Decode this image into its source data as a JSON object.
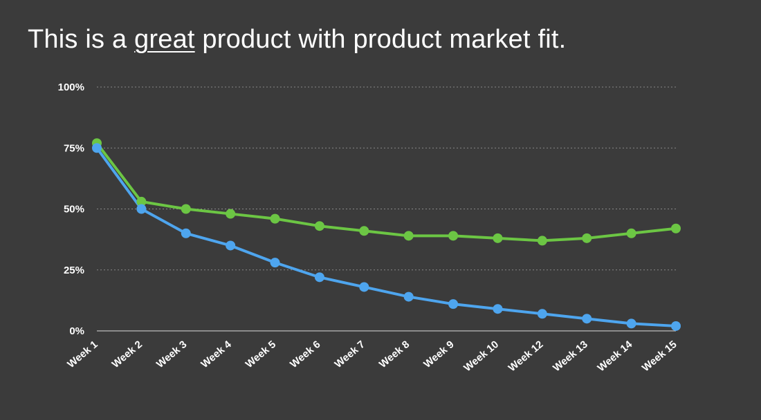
{
  "slide": {
    "title_before": "This is a ",
    "title_emphasis": "great",
    "title_after": " product with product market fit."
  },
  "colors": {
    "background": "#3b3b3b",
    "grid": "#8a8a8a",
    "baseline": "#bdbdbd",
    "text": "#ffffff"
  },
  "chart_data": {
    "type": "line",
    "title": "This is a great product with product market fit.",
    "xlabel": "",
    "ylabel": "",
    "categories": [
      "Week 1",
      "Week 2",
      "Week 3",
      "Week 4",
      "Week 5",
      "Week 6",
      "Week 7",
      "Week 8",
      "Week 9",
      "Week 10",
      "Week 12",
      "Week 13",
      "Week 14",
      "Week 15"
    ],
    "ylim": [
      0,
      100
    ],
    "yticks": [
      0,
      25,
      50,
      75,
      100
    ],
    "ytick_labels": [
      "0%",
      "25%",
      "50%",
      "75%",
      "100%"
    ],
    "grid": true,
    "grid_style": "dotted horizontal",
    "legend": "none",
    "series": [
      {
        "color": "#6cc644",
        "values": [
          77,
          53,
          50,
          48,
          46,
          43,
          41,
          39,
          39,
          38,
          37,
          38,
          40,
          42
        ]
      },
      {
        "color": "#4ea5ee",
        "values": [
          75,
          50,
          40,
          35,
          28,
          22,
          18,
          14,
          11,
          9,
          7,
          5,
          3,
          2
        ]
      }
    ]
  }
}
